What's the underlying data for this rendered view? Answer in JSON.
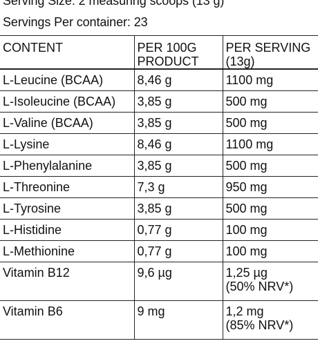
{
  "header": {
    "serving_size": "Serving Size: 2 measuring scoops (13 g)",
    "servings_per_container": "Servings Per container: 23"
  },
  "table": {
    "columns": [
      {
        "line1": "CONTENT",
        "line2": ""
      },
      {
        "line1": "PER 100G",
        "line2": "PRODUCT"
      },
      {
        "line1": "PER SERVING",
        "line2": "(13g)"
      }
    ],
    "rows": [
      {
        "name": "L-Leucine (BCAA)",
        "per100": "8,46 g",
        "serving": "1100 mg",
        "serving_note": ""
      },
      {
        "name": "L-Isoleucine (BCAA)",
        "per100": "3,85 g",
        "serving": "500 mg",
        "serving_note": ""
      },
      {
        "name": "L-Valine (BCAA)",
        "per100": "3,85 g",
        "serving": "500 mg",
        "serving_note": ""
      },
      {
        "name": "L-Lysine",
        "per100": "8,46 g",
        "serving": "1100 mg",
        "serving_note": ""
      },
      {
        "name": "L-Phenylalanine",
        "per100": "3,85 g",
        "serving": "500 mg",
        "serving_note": ""
      },
      {
        "name": "L-Threonine",
        "per100": "7,3 g",
        "serving": "950 mg",
        "serving_note": ""
      },
      {
        "name": "L-Tyrosine",
        "per100": "3,85 g",
        "serving": "500 mg",
        "serving_note": ""
      },
      {
        "name": "L-Histidine",
        "per100": "0,77 g",
        "serving": "100 mg",
        "serving_note": ""
      },
      {
        "name": "L-Methionine",
        "per100": "0,77 g",
        "serving": "100 mg",
        "serving_note": ""
      },
      {
        "name": "Vitamin B12",
        "per100": "9,6 µg",
        "serving": "1,25 µg",
        "serving_note": "(50% NRV*)"
      },
      {
        "name": "Vitamin B6",
        "per100": "9 mg",
        "serving": "1,2 mg",
        "serving_note": "(85% NRV*)"
      }
    ]
  }
}
